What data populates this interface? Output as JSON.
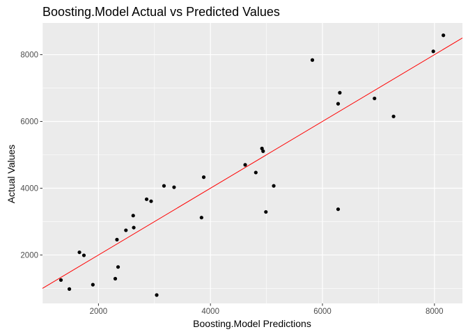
{
  "chart_data": {
    "type": "scatter",
    "title": "Boosting.Model Actual vs Predicted Values",
    "xlabel": "Boosting.Model Predictions",
    "ylabel": "Actual Values",
    "xlim": [
      1000,
      8500
    ],
    "ylim": [
      550,
      8950
    ],
    "x_ticks": [
      2000,
      4000,
      6000,
      8000
    ],
    "y_ticks": [
      2000,
      4000,
      6000,
      8000
    ],
    "x_tick_labels": [
      "2000",
      "4000",
      "6000",
      "8000"
    ],
    "y_tick_labels": [
      "2000",
      "4000",
      "6000",
      "8000"
    ],
    "grid": true,
    "legend": "none",
    "points": [
      {
        "x": 1330,
        "y": 1250
      },
      {
        "x": 1480,
        "y": 980
      },
      {
        "x": 1660,
        "y": 2080
      },
      {
        "x": 1740,
        "y": 1990
      },
      {
        "x": 1900,
        "y": 1110
      },
      {
        "x": 2300,
        "y": 1290
      },
      {
        "x": 2330,
        "y": 2460
      },
      {
        "x": 2350,
        "y": 1640
      },
      {
        "x": 2490,
        "y": 2740
      },
      {
        "x": 2620,
        "y": 3180
      },
      {
        "x": 2630,
        "y": 2820
      },
      {
        "x": 2860,
        "y": 3670
      },
      {
        "x": 2940,
        "y": 3610
      },
      {
        "x": 3040,
        "y": 800
      },
      {
        "x": 3170,
        "y": 4070
      },
      {
        "x": 3350,
        "y": 4030
      },
      {
        "x": 3840,
        "y": 3120
      },
      {
        "x": 3880,
        "y": 4330
      },
      {
        "x": 4620,
        "y": 4700
      },
      {
        "x": 4810,
        "y": 4470
      },
      {
        "x": 4920,
        "y": 5190
      },
      {
        "x": 4940,
        "y": 5110
      },
      {
        "x": 4990,
        "y": 3290
      },
      {
        "x": 5130,
        "y": 4070
      },
      {
        "x": 5820,
        "y": 7840
      },
      {
        "x": 6280,
        "y": 6530
      },
      {
        "x": 6280,
        "y": 3370
      },
      {
        "x": 6310,
        "y": 6860
      },
      {
        "x": 6930,
        "y": 6690
      },
      {
        "x": 7270,
        "y": 6150
      },
      {
        "x": 7980,
        "y": 8100
      },
      {
        "x": 8160,
        "y": 8580
      }
    ],
    "reference_line": {
      "type": "identity",
      "color": "#ff0000"
    },
    "point_color": "#000000",
    "panel_background": "#ebebeb",
    "grid_color": "#ffffff"
  }
}
